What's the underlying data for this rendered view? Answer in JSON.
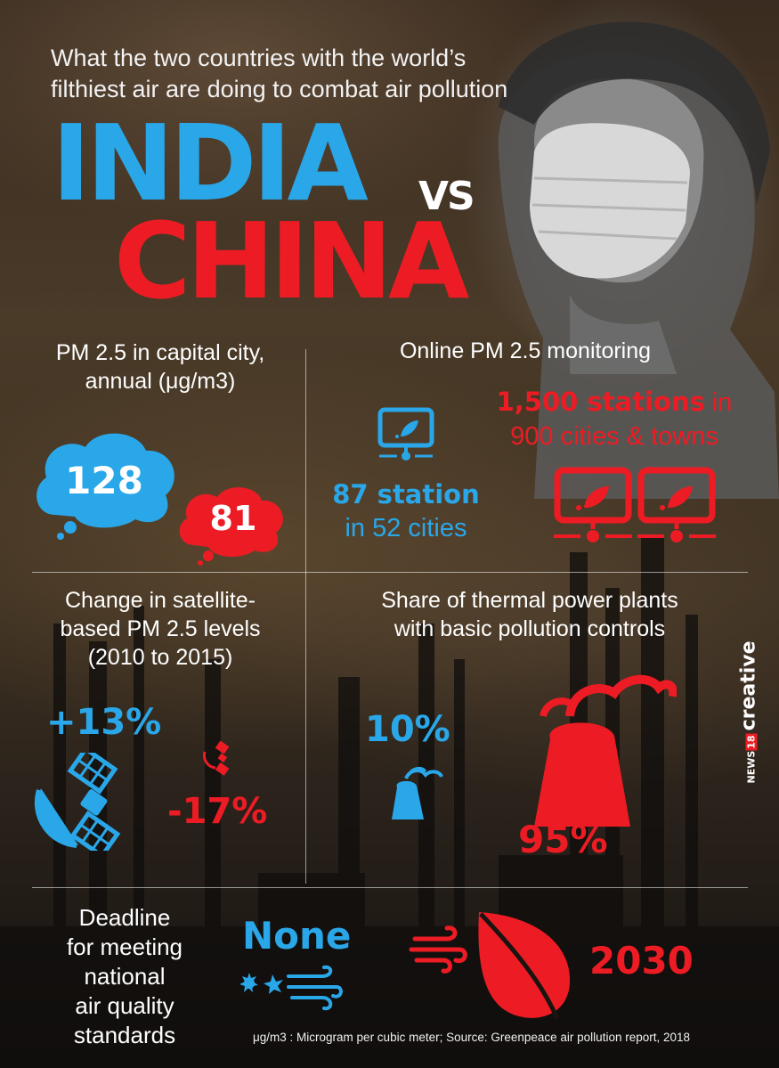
{
  "header": {
    "subtitle_line1": "What the two countries with the world’s",
    "subtitle_line2": "filthiest air are doing to combat air pollution",
    "india": "INDIA",
    "vs": "VS",
    "china": "CHINA"
  },
  "pm25_capital": {
    "heading_line1": "PM 2.5 in capital city,",
    "heading_line2": "annual (μg/m3)",
    "india_value": "128",
    "china_value": "81"
  },
  "monitoring": {
    "heading": "Online PM 2.5 monitoring",
    "china_line1_bold": "1,500 stations",
    "china_line1_rest": " in",
    "china_line2": "900 cities & towns",
    "india_line1": "87 station",
    "india_line2": "in 52 cities"
  },
  "satellite": {
    "heading_line1": "Change in satellite-",
    "heading_line2": "based PM 2.5 levels",
    "heading_line3": "(2010 to 2015)",
    "india_value": "+13%",
    "china_value": "-17%"
  },
  "thermal": {
    "heading_line1": "Share of thermal power plants",
    "heading_line2": "with basic pollution controls",
    "india_value": "10%",
    "china_value": "95%"
  },
  "deadline": {
    "heading_lines": [
      "Deadline",
      "for meeting",
      "national",
      "air quality",
      "standards"
    ],
    "india_value": "None",
    "china_value": "2030"
  },
  "footer": {
    "source": "μg/m3 : Microgram per cubic meter; Source: Greenpeace air pollution report, 2018"
  },
  "brand": {
    "news": "NEWS",
    "num": "18",
    "creative": "creative"
  },
  "colors": {
    "india": "#2aa7e8",
    "china": "#ed1c24"
  },
  "icons": [
    "monitor-icon",
    "satellite-icon",
    "power-plant-icon",
    "leaf-icon",
    "wind-icon",
    "cloud-icon"
  ]
}
